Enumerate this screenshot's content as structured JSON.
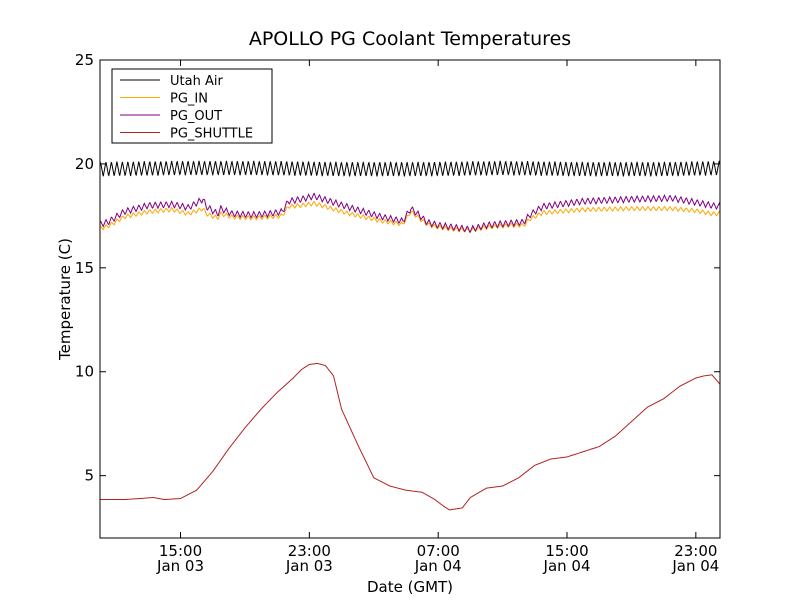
{
  "chart_data": {
    "type": "line",
    "title": "APOLLO PG Coolant Temperatures",
    "xlabel": "Date (GMT)",
    "ylabel": "Temperature (C)",
    "x_unit": "hours since Jan 03 00:00 GMT",
    "xlim": [
      10.0,
      48.5
    ],
    "ylim": [
      2,
      25
    ],
    "grid": false,
    "legend_position": "top-left",
    "y_ticks": [
      5,
      10,
      15,
      20,
      25
    ],
    "x_ticks": [
      {
        "value": 15,
        "time": "15:00",
        "date": "Jan 03"
      },
      {
        "value": 23,
        "time": "23:00",
        "date": "Jan 03"
      },
      {
        "value": 31,
        "time": "07:00",
        "date": "Jan 04"
      },
      {
        "value": 39,
        "time": "15:00",
        "date": "Jan 04"
      },
      {
        "value": 47,
        "time": "23:00",
        "date": "Jan 04"
      }
    ],
    "series": [
      {
        "name": "Utah Air",
        "color": "#000000",
        "oscillation": {
          "period_hours": 0.34,
          "amplitude": 0.35
        },
        "x": [
          10.0,
          15.0,
          20.0,
          25.0,
          30.0,
          35.0,
          40.0,
          45.0,
          48.5
        ],
        "y": [
          19.75,
          19.8,
          19.8,
          19.75,
          19.75,
          19.8,
          19.75,
          19.75,
          19.8
        ]
      },
      {
        "name": "PG_IN",
        "color": "#ffa500",
        "oscillation": {
          "period_hours": 0.34,
          "amplitude": 0.1
        },
        "x": [
          10.0,
          10.5,
          11.5,
          13.0,
          14.5,
          15.5,
          16.4,
          16.6,
          17.3,
          17.5,
          18.2,
          19.5,
          20.5,
          21.3,
          21.7,
          22.5,
          23.3,
          25.5,
          27.5,
          28.8,
          29.3,
          29.8,
          30.3,
          31.0,
          32.0,
          33.0,
          34.0,
          35.5,
          36.3,
          36.7,
          37.5,
          40.0,
          43.0,
          45.5,
          47.0,
          48.0,
          48.5
        ],
        "y": [
          16.9,
          17.0,
          17.45,
          17.7,
          17.8,
          17.6,
          17.85,
          17.6,
          17.4,
          17.6,
          17.45,
          17.4,
          17.45,
          17.5,
          17.95,
          18.0,
          18.1,
          17.6,
          17.25,
          17.1,
          17.7,
          17.4,
          17.1,
          16.95,
          16.85,
          16.8,
          16.95,
          17.05,
          17.05,
          17.35,
          17.65,
          17.8,
          17.85,
          17.85,
          17.75,
          17.6,
          17.6
        ]
      },
      {
        "name": "PG_OUT",
        "color": "#800080",
        "oscillation": {
          "period_hours": 0.34,
          "amplitude": 0.15
        },
        "x": [
          10.0,
          10.5,
          11.5,
          13.0,
          14.5,
          15.5,
          16.4,
          16.6,
          17.3,
          17.5,
          18.2,
          19.5,
          20.5,
          21.3,
          21.7,
          22.5,
          23.3,
          25.5,
          27.5,
          28.8,
          29.3,
          29.8,
          30.3,
          31.0,
          32.0,
          33.0,
          34.0,
          35.5,
          36.3,
          36.7,
          37.5,
          40.0,
          43.0,
          45.5,
          47.0,
          48.0,
          48.5
        ],
        "y": [
          17.1,
          17.2,
          17.7,
          18.0,
          18.05,
          17.9,
          18.3,
          17.95,
          17.6,
          17.85,
          17.6,
          17.55,
          17.6,
          17.7,
          18.2,
          18.3,
          18.45,
          17.9,
          17.45,
          17.25,
          17.85,
          17.55,
          17.2,
          17.05,
          16.95,
          16.85,
          17.05,
          17.15,
          17.2,
          17.55,
          17.95,
          18.2,
          18.3,
          18.35,
          18.15,
          18.0,
          17.95
        ]
      },
      {
        "name": "PG_SHUTTLE",
        "color": "#b22222",
        "oscillation": {
          "period_hours": 0.34,
          "amplitude": 0.0
        },
        "x": [
          10.0,
          11.5,
          12.5,
          13.3,
          14.0,
          15.0,
          16.0,
          17.0,
          18.0,
          19.0,
          20.0,
          21.0,
          22.0,
          22.5,
          23.0,
          23.5,
          24.0,
          24.5,
          25.0,
          26.0,
          27.0,
          28.0,
          29.0,
          30.0,
          30.8,
          31.3,
          31.7,
          32.5,
          33.0,
          34.0,
          35.0,
          36.0,
          37.0,
          38.0,
          39.0,
          40.0,
          41.0,
          42.0,
          43.0,
          44.0,
          45.0,
          46.0,
          47.0,
          47.5,
          48.0,
          48.5
        ],
        "y": [
          3.85,
          3.85,
          3.9,
          3.95,
          3.85,
          3.9,
          4.3,
          5.2,
          6.3,
          7.3,
          8.2,
          9.0,
          9.7,
          10.1,
          10.35,
          10.4,
          10.3,
          9.8,
          8.2,
          6.5,
          4.9,
          4.5,
          4.3,
          4.2,
          3.85,
          3.55,
          3.35,
          3.45,
          3.95,
          4.4,
          4.5,
          4.9,
          5.5,
          5.8,
          5.9,
          6.15,
          6.4,
          6.9,
          7.6,
          8.3,
          8.7,
          9.3,
          9.7,
          9.8,
          9.85,
          9.4
        ]
      }
    ]
  }
}
